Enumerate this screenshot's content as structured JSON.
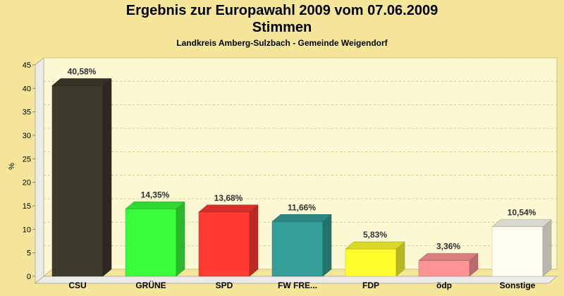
{
  "title": "Ergebnis zur Europawahl 2009 vom 07.06.2009",
  "subtitle": "Stimmen",
  "caption": "Landkreis Amberg-Sulzbach - Gemeinde Weigendorf",
  "colors": {
    "background": "#f5e69a",
    "plot": "#fdf8d4",
    "grid": "#d8cc8a"
  },
  "chart_data": {
    "type": "bar",
    "title": "Ergebnis zur Europawahl 2009 vom 07.06.2009",
    "subtitle": "Stimmen",
    "xlabel": "",
    "ylabel": "%",
    "ylim": [
      0,
      45
    ],
    "yticks": [
      0,
      5,
      10,
      15,
      20,
      25,
      30,
      35,
      40,
      45
    ],
    "grid": true,
    "categories": [
      "CSU",
      "GRÜNE",
      "SPD",
      "FW FRE...",
      "FDP",
      "ödp",
      "Sonstige"
    ],
    "values": [
      40.58,
      14.35,
      13.68,
      11.66,
      5.83,
      3.36,
      10.54
    ],
    "value_labels": [
      "40,58%",
      "14,35%",
      "13,68%",
      "11,66%",
      "5,83%",
      "3,36%",
      "10,54%"
    ],
    "bar_colors": [
      "#3d3a2c",
      "#3cff3c",
      "#ff3a30",
      "#349e98",
      "#ffff30",
      "#ff9494",
      "#fffef0"
    ]
  }
}
